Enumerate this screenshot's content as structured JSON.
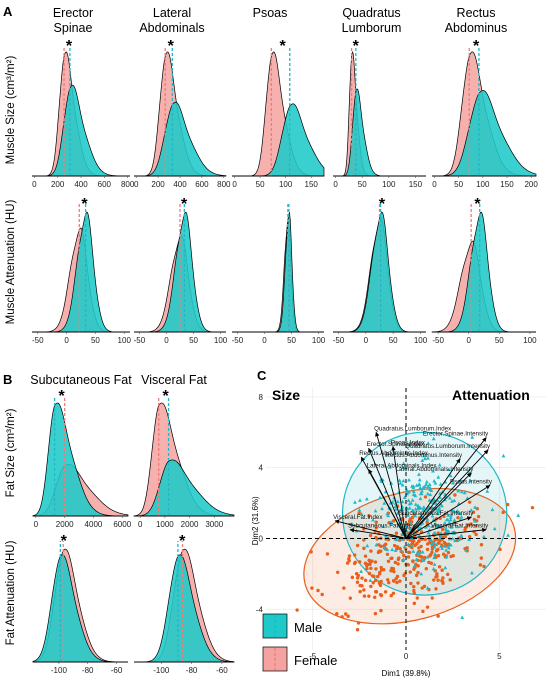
{
  "panels": {
    "a": "A",
    "b": "B",
    "c": "C"
  },
  "colors": {
    "male": "#1fc9c9",
    "female": "#f4a3a0",
    "male_line": "#1fb8c8",
    "female_line": "#ef7c7a",
    "pca_point_female": "#e8601c"
  },
  "chart_data": [
    {
      "type": "area",
      "panel": "A",
      "ylabel": "Muscle Size (cm³/m²)",
      "star": "*",
      "subplots": [
        {
          "title": [
            "Erector",
            "Spinae"
          ],
          "x": [
            0,
            200,
            400,
            600,
            800
          ],
          "xlim": [
            -20,
            820
          ],
          "male": {
            "mean": 305,
            "sd": 85
          },
          "female": {
            "mean": 255,
            "sd": 65
          }
        },
        {
          "title": [
            "Lateral",
            "Abdominals"
          ],
          "x": [
            0,
            200,
            400,
            600,
            800
          ],
          "xlim": [
            -20,
            820
          ],
          "male": {
            "mean": 330,
            "sd": 110
          },
          "female": {
            "mean": 265,
            "sd": 80
          }
        },
        {
          "title": [
            "Psoas",
            ""
          ],
          "x": [
            0,
            50,
            100,
            150
          ],
          "xlim": [
            -5,
            175
          ],
          "male": {
            "mean": 108,
            "sd": 24
          },
          "female": {
            "mean": 72,
            "sd": 17
          }
        },
        {
          "title": [
            "Quadratus",
            "Lumborum"
          ],
          "x": [
            0,
            50,
            100,
            150
          ],
          "xlim": [
            -5,
            170
          ],
          "male": {
            "mean": 38,
            "sd": 10
          },
          "female": {
            "mean": 30,
            "sd": 7
          }
        },
        {
          "title": [
            "Rectus",
            "Abdominus"
          ],
          "x": [
            0,
            50,
            100,
            150,
            200
          ],
          "xlim": [
            -5,
            210
          ],
          "male": {
            "mean": 92,
            "sd": 32
          },
          "female": {
            "mean": 72,
            "sd": 24
          }
        }
      ]
    },
    {
      "type": "area",
      "panel": "A",
      "ylabel": "Muscle Attenuation (HU)",
      "star": "*",
      "subplots": [
        {
          "x": [
            -50,
            0,
            50,
            100
          ],
          "xlim": [
            -60,
            110
          ],
          "male": {
            "mean": 33,
            "sd": 14
          },
          "female": {
            "mean": 22,
            "sd": 15
          }
        },
        {
          "x": [
            -50,
            0,
            50,
            100
          ],
          "xlim": [
            -60,
            110
          ],
          "male": {
            "mean": 33,
            "sd": 15
          },
          "female": {
            "mean": 25,
            "sd": 16
          }
        },
        {
          "x": [
            -50,
            0,
            50,
            100
          ],
          "xlim": [
            -60,
            110
          ],
          "male": {
            "mean": 45,
            "sd": 6
          },
          "female": {
            "mean": 43,
            "sd": 6
          }
        },
        {
          "x": [
            -50,
            0,
            50,
            100
          ],
          "xlim": [
            -60,
            110
          ],
          "male": {
            "mean": 27,
            "sd": 15
          },
          "female": {
            "mean": 25,
            "sd": 15
          }
        },
        {
          "x": [
            -50,
            0,
            50,
            100
          ],
          "xlim": [
            -60,
            110
          ],
          "male": {
            "mean": 18,
            "sd": 14
          },
          "female": {
            "mean": 4,
            "sd": 16
          }
        }
      ]
    },
    {
      "type": "area",
      "panel": "B",
      "ylabel": "Fat Size (cm³/m²)",
      "star": "*",
      "subplots": [
        {
          "title": [
            "Subcutaneous Fat"
          ],
          "x": [
            0,
            2000,
            4000,
            6000
          ],
          "xlim": [
            -200,
            6400
          ],
          "male": {
            "mean": 1300,
            "sd": 800
          },
          "female": {
            "mean": 2000,
            "sd": 1100
          }
        },
        {
          "title": [
            "Visceral Fat"
          ],
          "x": [
            0,
            1000,
            2000,
            3000
          ],
          "xlim": [
            -250,
            3800
          ],
          "male": {
            "mean": 1150,
            "sd": 650
          },
          "female": {
            "mean": 750,
            "sd": 500
          }
        }
      ]
    },
    {
      "type": "area",
      "panel": "B",
      "ylabel": "Fat Attenuation (HU)",
      "star": "*",
      "subplots": [
        {
          "x": [
            -100,
            -80,
            -60
          ],
          "xlim": [
            -118,
            -52
          ],
          "male": {
            "mean": -99,
            "sd": 8
          },
          "female": {
            "mean": -97,
            "sd": 8
          }
        },
        {
          "x": [
            -100,
            -80,
            -60
          ],
          "xlim": [
            -118,
            -52
          ],
          "male": {
            "mean": -89,
            "sd": 8
          },
          "female": {
            "mean": -86,
            "sd": 8
          }
        }
      ]
    },
    {
      "type": "scatter",
      "panel": "C",
      "title_left": "Size",
      "title_right": "Attenuation",
      "xlabel": "Dim1 (39.8%)",
      "ylabel": "Dim2 (31.6%)",
      "xlim": [
        -7.5,
        7.5
      ],
      "ylim": [
        -6.3,
        8.5
      ],
      "xticks": [
        -5,
        0,
        5
      ],
      "yticks": [
        -4,
        0,
        4,
        8
      ],
      "loadings": [
        {
          "name": "Quadratus.Lumborum.Index",
          "x": -1.6,
          "y": 6.0
        },
        {
          "name": "Psoas.Index",
          "x": -0.7,
          "y": 5.2
        },
        {
          "name": "Erector.Spinae.Index",
          "x": -2.0,
          "y": 5.1
        },
        {
          "name": "Rectus.Abdominus.Index",
          "x": -2.4,
          "y": 4.6
        },
        {
          "name": "Lateral.Abdominals.Index",
          "x": -2.0,
          "y": 3.9
        },
        {
          "name": "Visceral.Fat.Index",
          "x": -3.8,
          "y": 1.0
        },
        {
          "name": "Subcutaneous.Fat.Index",
          "x": -3.0,
          "y": 0.5
        },
        {
          "name": "Erector.Spinae.Intensity",
          "x": 4.3,
          "y": 5.7
        },
        {
          "name": "Quadratus.Lumborum.Intensity",
          "x": 4.4,
          "y": 5.0
        },
        {
          "name": "Rectus.Abdominus.Intensity",
          "x": 2.9,
          "y": 4.5
        },
        {
          "name": "Lateral.Abdominals.Intensity",
          "x": 3.5,
          "y": 3.7
        },
        {
          "name": "Psoas.Intensity",
          "x": 4.5,
          "y": 3.0
        },
        {
          "name": "Subcutaneous.Fat.Intensity",
          "x": 3.5,
          "y": 1.2
        },
        {
          "name": "Visceral.Fat.Intensity",
          "x": 4.3,
          "y": 0.5
        }
      ],
      "ellipses": {
        "male": {
          "cx": 1.0,
          "cy": 1.4,
          "rx": 4.4,
          "ry": 4.6,
          "angle": 0
        },
        "female": {
          "cx": 0.2,
          "cy": -1.0,
          "rx": 5.8,
          "ry": 3.6,
          "angle": 15
        }
      },
      "legend": [
        "Male",
        "Female"
      ]
    }
  ]
}
